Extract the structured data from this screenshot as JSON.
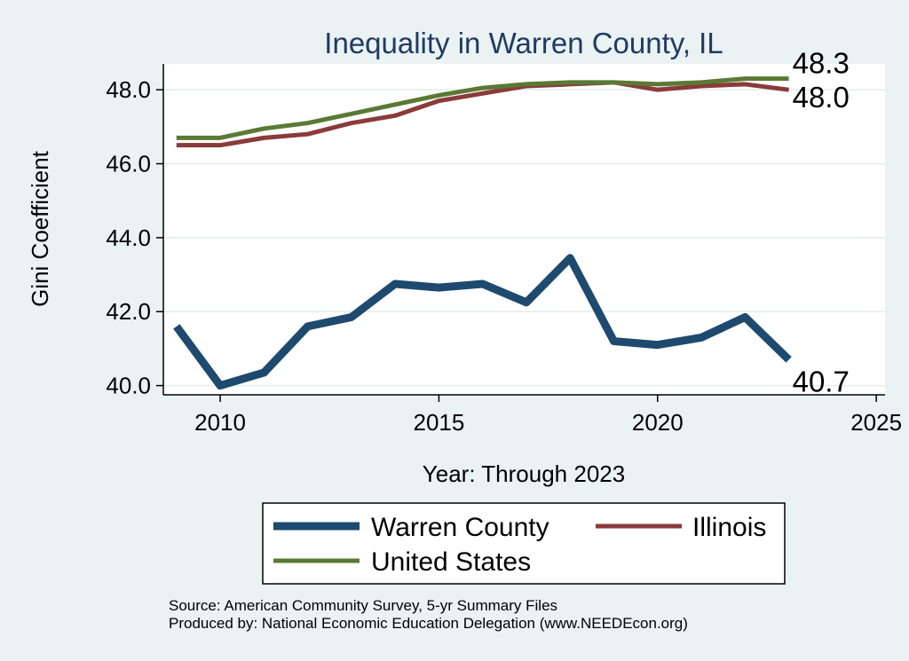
{
  "chart_data": {
    "type": "line",
    "title": "Inequality in Warren County, IL",
    "xlabel": "Year: Through 2023",
    "ylabel": "Gini Coefficient",
    "xlim": [
      2008.7,
      2025.2
    ],
    "ylim": [
      39.75,
      48.7
    ],
    "xticks": [
      2010,
      2015,
      2020,
      2025
    ],
    "yticks": [
      40.0,
      42.0,
      44.0,
      46.0,
      48.0
    ],
    "ytick_labels": [
      "40.0",
      "42.0",
      "44.0",
      "46.0",
      "48.0"
    ],
    "grid": true,
    "legend_placement": "bottom",
    "x": [
      2009,
      2010,
      2011,
      2012,
      2013,
      2014,
      2015,
      2016,
      2017,
      2018,
      2019,
      2020,
      2021,
      2022,
      2023
    ],
    "series": [
      {
        "name": "Warren County",
        "color": "#1d4a6e",
        "values": [
          41.6,
          40.0,
          40.35,
          41.6,
          41.85,
          42.75,
          42.65,
          42.75,
          42.25,
          43.45,
          41.2,
          41.1,
          41.3,
          41.85,
          40.7
        ],
        "end_label": "40.7"
      },
      {
        "name": "Illinois",
        "color": "#8b3a3a",
        "values": [
          46.5,
          46.5,
          46.7,
          46.8,
          47.1,
          47.3,
          47.7,
          47.9,
          48.1,
          48.15,
          48.2,
          48.0,
          48.1,
          48.15,
          48.0
        ],
        "end_label": "48.0"
      },
      {
        "name": "United States",
        "color": "#5a7a34",
        "values": [
          46.7,
          46.7,
          46.95,
          47.1,
          47.35,
          47.6,
          47.85,
          48.05,
          48.15,
          48.2,
          48.2,
          48.15,
          48.2,
          48.3,
          48.3
        ],
        "end_label": "48.3"
      }
    ]
  },
  "legend": {
    "entries": [
      "Warren County",
      "Illinois",
      "United States"
    ]
  },
  "source": {
    "line1": "Source: American Community Survey, 5-yr Summary Files",
    "line2": "Produced by: National Economic Education Delegation (www.NEEDEcon.org)"
  }
}
